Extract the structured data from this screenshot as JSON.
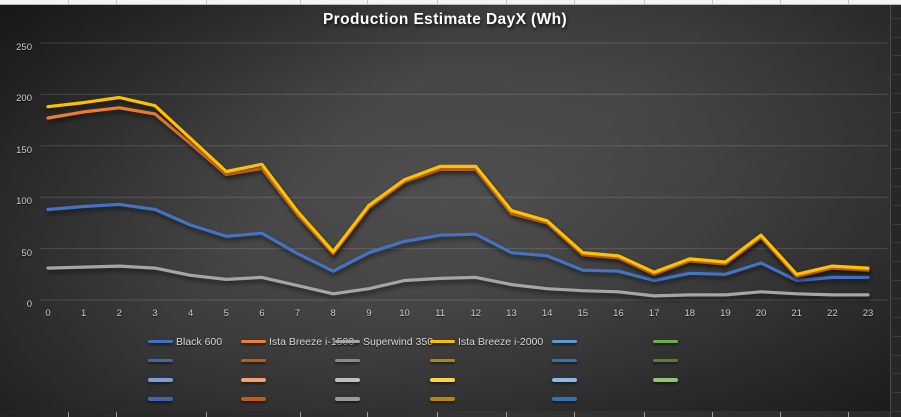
{
  "title": "Production Estimate DayX (Wh)",
  "chart_data": {
    "type": "line",
    "title": "Production Estimate DayX (Wh)",
    "x": [
      0,
      1,
      2,
      3,
      4,
      5,
      6,
      7,
      8,
      9,
      10,
      11,
      12,
      13,
      14,
      15,
      16,
      17,
      18,
      19,
      20,
      21,
      22,
      23
    ],
    "xlabel": "",
    "ylabel": "",
    "ylim": [
      0,
      250
    ],
    "yticks": [
      0,
      50,
      100,
      150,
      200,
      250
    ],
    "grid": true,
    "legend_position": "bottom",
    "series": [
      {
        "name": "Black 600",
        "color": "#4472C4",
        "values": [
          88,
          91,
          93,
          88,
          73,
          62,
          65,
          45,
          28,
          46,
          57,
          63,
          64,
          46,
          43,
          29,
          28,
          19,
          26,
          25,
          36,
          19,
          22,
          22
        ]
      },
      {
        "name": "Ista Breeze i-1500",
        "color": "#ED7D31",
        "values": [
          177,
          183,
          187,
          181,
          152,
          122,
          128,
          83,
          45,
          90,
          115,
          127,
          127,
          84,
          75,
          44,
          41,
          25,
          38,
          35,
          61,
          23,
          31,
          29
        ]
      },
      {
        "name": "Superwind 350",
        "color": "#A5A5A5",
        "values": [
          31,
          32,
          33,
          31,
          24,
          20,
          22,
          14,
          6,
          11,
          19,
          21,
          22,
          15,
          11,
          9,
          8,
          4,
          5,
          5,
          8,
          6,
          5,
          5
        ]
      },
      {
        "name": "Ista Breeze i-2000",
        "color": "#FFC000",
        "values": [
          188,
          192,
          197,
          189,
          157,
          125,
          132,
          86,
          47,
          92,
          117,
          130,
          130,
          87,
          77,
          46,
          43,
          27,
          40,
          37,
          63,
          25,
          33,
          31
        ]
      }
    ]
  },
  "legend": {
    "rows": [
      {
        "cells": [
          {
            "label": "Black 600",
            "color": "#4472C4"
          },
          {
            "label": "Ista Breeze i-1500",
            "color": "#ED7D31"
          },
          {
            "label": "Superwind 350",
            "color": "#A5A5A5"
          },
          {
            "label": "Ista Breeze i-2000",
            "color": "#FFC000"
          },
          {
            "label": "",
            "color": "#5B9BD5"
          },
          {
            "label": "",
            "color": "#70AD47"
          }
        ]
      },
      {
        "cells": [
          {
            "label": "",
            "color": "#3E66AE"
          },
          {
            "label": "",
            "color": "#C55A11"
          },
          {
            "label": "",
            "color": "#8A8A8A"
          },
          {
            "label": "",
            "color": "#AD8A00"
          },
          {
            "label": "",
            "color": "#2E75B6"
          },
          {
            "label": "",
            "color": "#548235"
          }
        ]
      },
      {
        "cells": [
          {
            "label": "",
            "color": "#7D9DD8"
          },
          {
            "label": "",
            "color": "#F2A368"
          },
          {
            "label": "",
            "color": "#BFBFBF"
          },
          {
            "label": "",
            "color": "#FFD34D"
          },
          {
            "label": "",
            "color": "#8BB9E8"
          },
          {
            "label": "",
            "color": "#94C471"
          }
        ]
      },
      {
        "cells": [
          {
            "label": "",
            "color": "#3E66AE"
          },
          {
            "label": "",
            "color": "#C55A11"
          },
          {
            "label": "",
            "color": "#9A9A9A"
          },
          {
            "label": "",
            "color": "#B8860B"
          },
          {
            "label": "",
            "color": "#2E75B6"
          }
        ]
      }
    ]
  },
  "accent_colors": {
    "blue": "#4472C4",
    "orange": "#ED7D31",
    "gray": "#A5A5A5",
    "yellow": "#FFC000",
    "light_blue": "#5B9BD5",
    "green": "#70AD47"
  }
}
